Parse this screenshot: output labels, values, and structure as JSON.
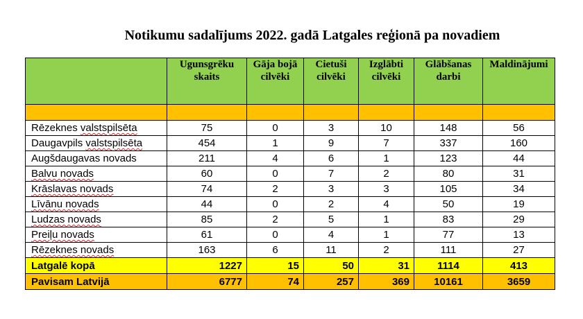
{
  "title": "Notikumu sadalījums 2022. gadā Latgales reģionā pa novadiem",
  "columns": [
    "",
    "Ugunsgrēku skaits",
    "Gāja bojā cilvēki",
    "Cietuši cilvēki",
    "Izglābti cilvēki",
    "Glābšanas darbi",
    "Maldinājumi"
  ],
  "rows": [
    {
      "name_a": "Rēzeknes ",
      "name_b": "valstspilsēta",
      "values": [
        "75",
        "0",
        "3",
        "10",
        "148",
        "56"
      ]
    },
    {
      "name_a": "Daugavpils ",
      "name_b": "valstspilsēta",
      "values": [
        "454",
        "1",
        "9",
        "7",
        "337",
        "160"
      ]
    },
    {
      "name_a": "Augšdaugavas novads",
      "name_b": "",
      "values": [
        "211",
        "4",
        "6",
        "1",
        "123",
        "44"
      ]
    },
    {
      "name_a": "",
      "name_b": "Balvu novads",
      "values": [
        "60",
        "0",
        "7",
        "2",
        "80",
        "31"
      ]
    },
    {
      "name_a": "",
      "name_b": "Krāslavas novads",
      "values": [
        "74",
        "2",
        "3",
        "3",
        "105",
        "34"
      ]
    },
    {
      "name_a": "",
      "name_b": "Līvānu novads",
      "values": [
        "44",
        "0",
        "2",
        "4",
        "50",
        "19"
      ]
    },
    {
      "name_a": "",
      "name_b": "Ludzas novads",
      "values": [
        "85",
        "2",
        "5",
        "1",
        "83",
        "29"
      ]
    },
    {
      "name_a": "",
      "name_b": "Preiļu novads",
      "values": [
        "61",
        "0",
        "4",
        "1",
        "77",
        "13"
      ]
    },
    {
      "name_a": "",
      "name_b": "Rēzeknes novads",
      "values": [
        "163",
        "6",
        "11",
        "2",
        "111",
        "27"
      ]
    }
  ],
  "total": {
    "name": "Latgalē kopā",
    "values": [
      "1227",
      "15",
      "50",
      "31",
      "1114",
      "413"
    ]
  },
  "grand": {
    "name": "Pavisam Latvijā",
    "values": [
      "6777",
      "74",
      "257",
      "369",
      "10161",
      "3659"
    ]
  },
  "colors": {
    "header": "#92d050",
    "band": "#ffc000",
    "total": "#ffff00",
    "grand": "#ffc000"
  }
}
